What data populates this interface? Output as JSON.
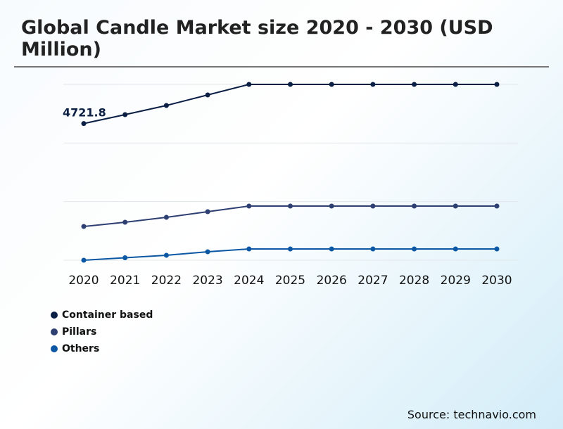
{
  "chart_data": {
    "type": "line",
    "title": "Global Candle Market size 2020 - 2030 (USD Million)",
    "categories": [
      "2020",
      "2021",
      "2022",
      "2023",
      "2024",
      "2025",
      "2026",
      "2027",
      "2028",
      "2029",
      "2030"
    ],
    "series": [
      {
        "name": "Container based",
        "color": "#0b1f45",
        "values": [
          4721.8,
          5030,
          5346,
          5711,
          6075,
          6075,
          6075,
          6075,
          6075,
          6075,
          6075
        ]
      },
      {
        "name": "Pillars",
        "color": "#2e3f72",
        "values": [
          1166,
          1312,
          1482,
          1677,
          1871,
          1871,
          1871,
          1871,
          1871,
          1871,
          1871
        ]
      },
      {
        "name": "Others",
        "color": "#0b57a4",
        "values": [
          0,
          85,
          170,
          291,
          389,
          389,
          389,
          389,
          389,
          389,
          389
        ]
      }
    ],
    "data_labels": [
      {
        "series": "Container based",
        "category": "2020",
        "text": "4721.8"
      }
    ],
    "ylim": [
      0,
      6075
    ],
    "grid": true,
    "legend": "bottom-left",
    "source": "Source: technavio.com"
  }
}
